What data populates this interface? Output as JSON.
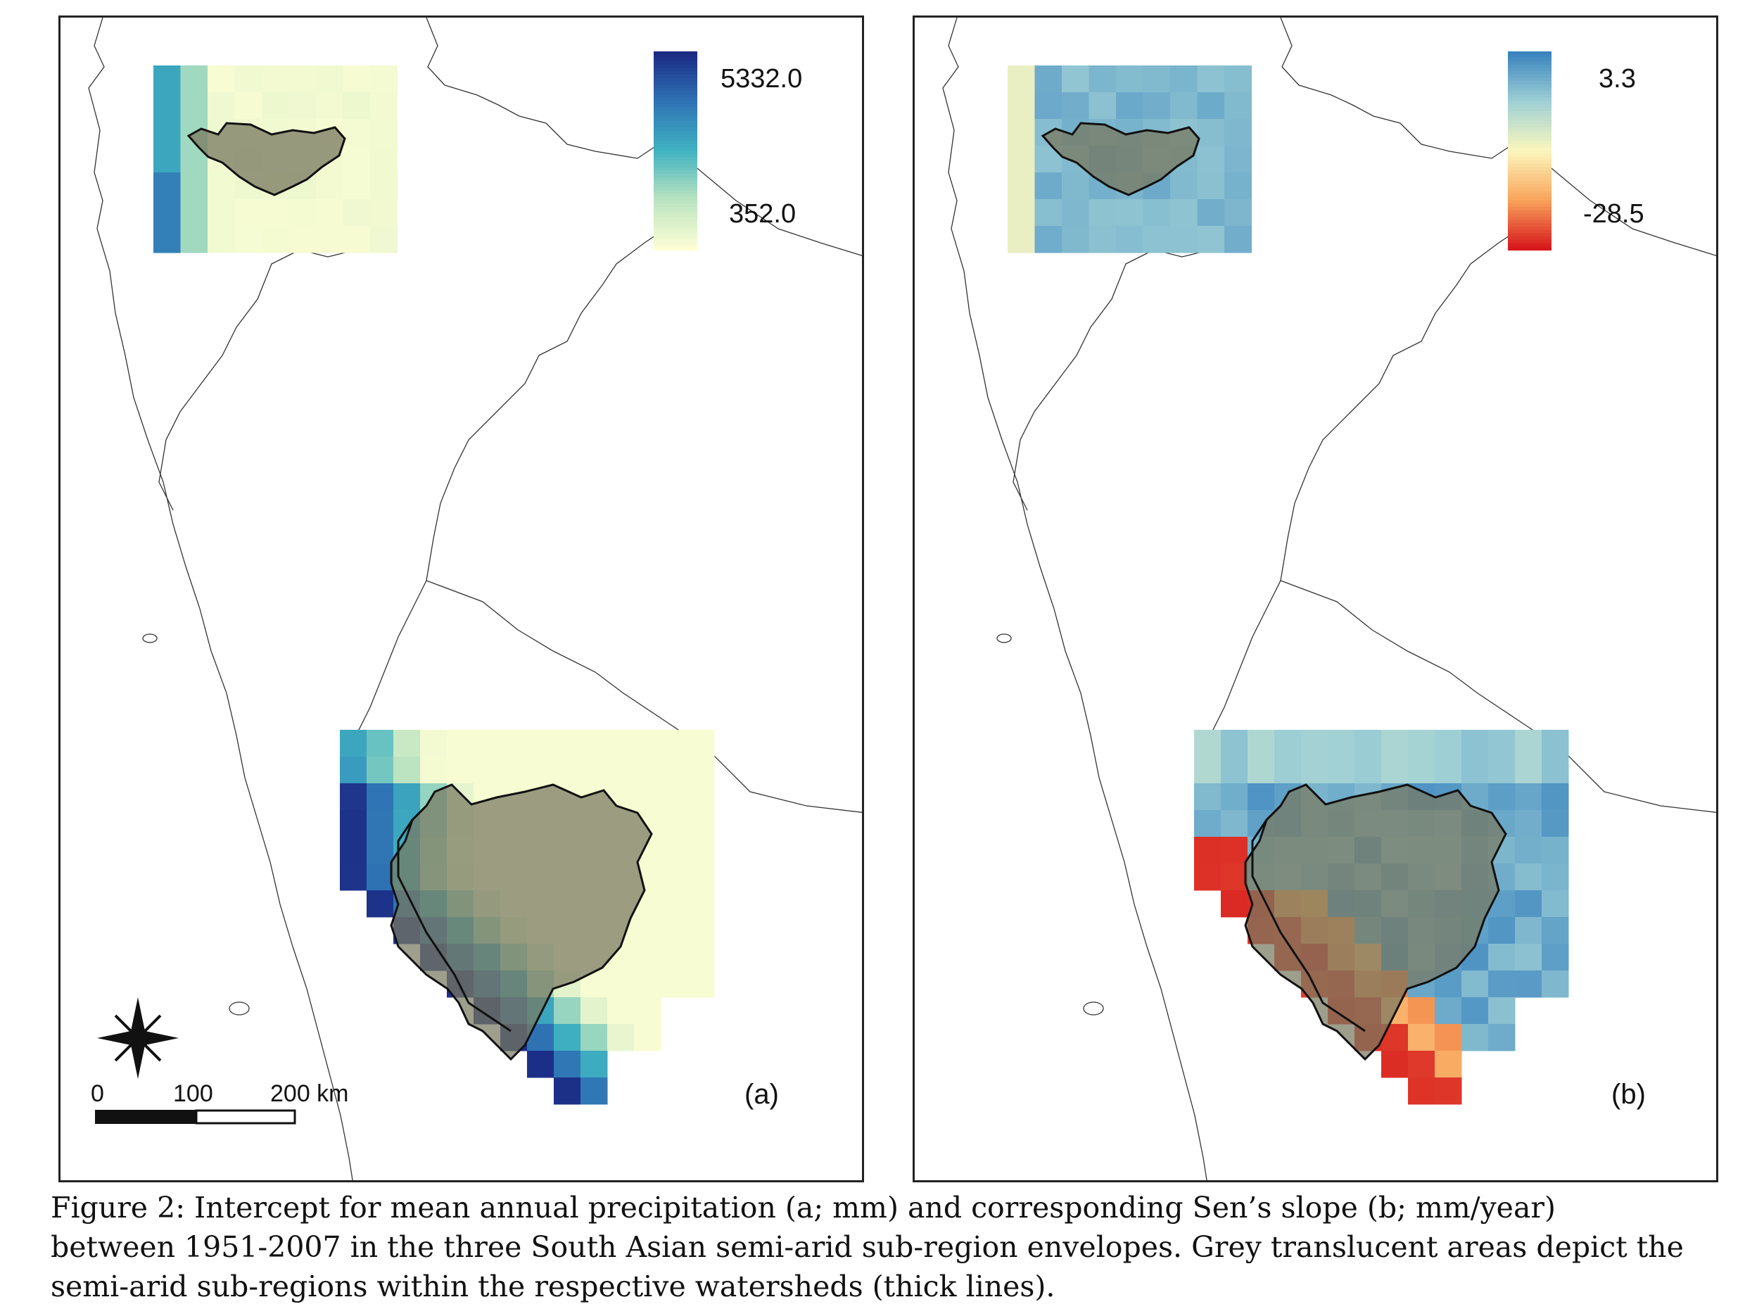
{
  "panels": [
    {
      "id": "a",
      "letter": "(a)",
      "legend": {
        "max_label": "5332.0",
        "min_label": "352.0",
        "colors": [
          "#1b2a84",
          "#2f74b5",
          "#3fb2c1",
          "#b9e3c0",
          "#fdfed4"
        ]
      },
      "variable": "mean annual precipitation intercept",
      "unit": "mm"
    },
    {
      "id": "b",
      "letter": "(b)",
      "legend": {
        "max_label": "3.3",
        "min_label": "-28.5",
        "colors": [
          "#3a84bf",
          "#9fd0d5",
          "#fbf7bd",
          "#f9a55c",
          "#d7191c"
        ]
      },
      "variable": "Sen's slope",
      "unit": "mm/year"
    }
  ],
  "scale_bar": {
    "labels": [
      "0",
      "100",
      "200 km"
    ]
  },
  "north_arrow": "compass-rose-icon",
  "caption_lines": [
    "Figure 2: Intercept for mean annual precipitation (a; mm) and corresponding Sen’s slope (b; mm/year)",
    "between 1951-2007 in the three South Asian semi-arid sub-region envelopes. Grey translucent areas depict the",
    "semi-arid sub-regions within the respective watersheds (thick lines)."
  ]
}
